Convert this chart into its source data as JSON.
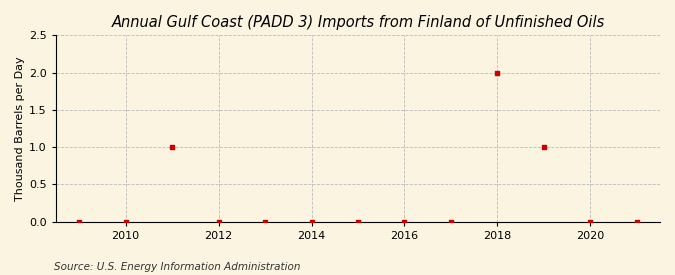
{
  "title": "Annual Gulf Coast (PADD 3) Imports from Finland of Unfinished Oils",
  "ylabel": "Thousand Barrels per Day",
  "source": "Source: U.S. Energy Information Administration",
  "years": [
    2009,
    2010,
    2011,
    2012,
    2013,
    2014,
    2015,
    2016,
    2017,
    2018,
    2019,
    2020,
    2021
  ],
  "values": [
    0,
    0,
    1.0,
    0,
    0,
    0,
    0,
    0,
    0,
    2.0,
    1.0,
    0,
    0
  ],
  "xlim": [
    2008.5,
    2021.5
  ],
  "ylim": [
    0,
    2.5
  ],
  "yticks": [
    0.0,
    0.5,
    1.0,
    1.5,
    2.0,
    2.5
  ],
  "xticks": [
    2010,
    2012,
    2014,
    2016,
    2018,
    2020
  ],
  "marker_color": "#cc0000",
  "marker_style": "s",
  "marker_size": 3,
  "grid_color": "#bbbbbb",
  "bg_color": "#faf4e1",
  "plot_bg_color": "#faf4e1",
  "title_fontsize": 10.5,
  "label_fontsize": 8,
  "tick_fontsize": 8,
  "source_fontsize": 7.5
}
